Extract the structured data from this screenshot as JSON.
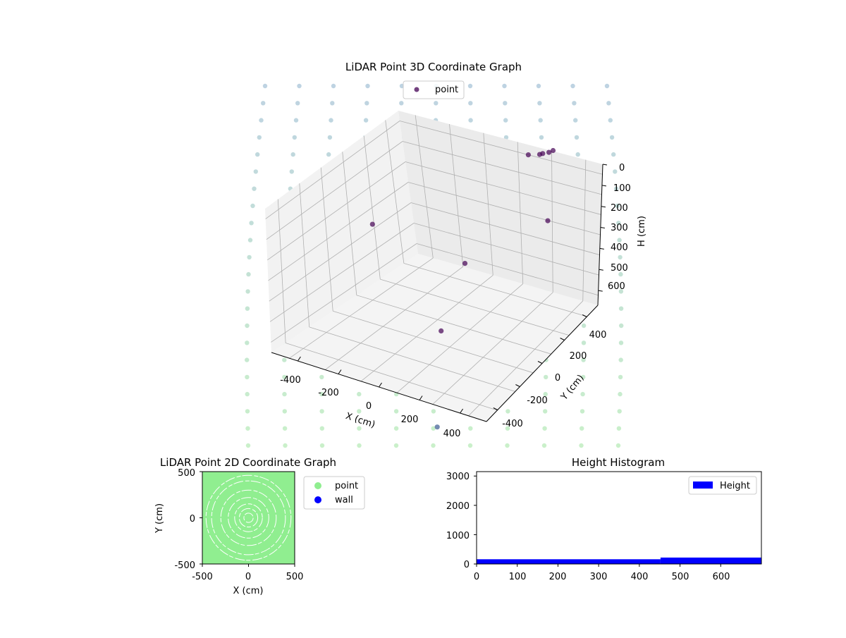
{
  "colors": {
    "grid": "#b0b0b0",
    "pane_left": "#f2f2f2",
    "pane_right": "#ebebeb",
    "pane_floor": "#f4f4f4",
    "cloud_top": "#a8c4d8",
    "cloud_bottom": "#b8ebb8",
    "point_dark": "#440154",
    "point_mid": "#3b5b92",
    "green": "#90ee90",
    "wall": "#0000ff",
    "hist_bar": "#0000ff"
  },
  "chart_data": [
    {
      "type": "scatter",
      "projection": "3d",
      "title": "LiDAR Point 3D Coordinate Graph",
      "xlabel": "X (cm)",
      "ylabel": "Y (cm)",
      "zlabel": "H (cm)",
      "xticks": [
        -400,
        -200,
        0,
        200,
        400
      ],
      "yticks": [
        -400,
        -200,
        0,
        200,
        400
      ],
      "zticks": [
        0,
        100,
        200,
        300,
        400,
        500,
        600
      ],
      "zaxis_inverted": true,
      "legend": {
        "entries": [
          "point"
        ],
        "position": "top-center"
      },
      "series": [
        {
          "name": "point",
          "points": [
            {
              "x": 150,
              "y": 420,
              "h": 90
            },
            {
              "x": 140,
              "y": 410,
              "h": 95
            },
            {
              "x": 120,
              "y": 400,
              "h": 100
            },
            {
              "x": 100,
              "y": 405,
              "h": 110
            },
            {
              "x": 60,
              "y": 390,
              "h": 115
            },
            {
              "x": 300,
              "y": 250,
              "h": 230
            },
            {
              "x": -330,
              "y": 30,
              "h": 310
            },
            {
              "x": 50,
              "y": 100,
              "h": 380
            },
            {
              "x": 130,
              "y": -90,
              "h": 520
            },
            {
              "x": 380,
              "y": -350,
              "h": 690
            }
          ]
        }
      ]
    },
    {
      "type": "scatter",
      "title": "LiDAR Point 2D Coordinate Graph",
      "xlabel": "X (cm)",
      "ylabel": "Y (cm)",
      "xticks": [
        -500,
        0,
        500
      ],
      "yticks": [
        -500,
        0,
        500
      ],
      "xlim": [
        -500,
        500
      ],
      "ylim": [
        -500,
        500
      ],
      "legend": {
        "entries": [
          "point",
          "wall"
        ],
        "position": "outside-right"
      },
      "rings_radii": [
        50,
        100,
        150,
        220,
        300,
        400,
        460
      ]
    },
    {
      "type": "bar",
      "title": "Height Histogram",
      "xticks": [
        0,
        100,
        200,
        300,
        400,
        500,
        600
      ],
      "yticks": [
        0,
        1000,
        2000,
        3000
      ],
      "xlim": [
        0,
        700
      ],
      "ylim": [
        0,
        3150
      ],
      "legend": {
        "entries": [
          "Height"
        ],
        "position": "top-right"
      },
      "bins": [
        {
          "from": 0,
          "to": 452,
          "count": 160
        },
        {
          "from": 452,
          "to": 700,
          "count": 220
        }
      ]
    }
  ]
}
